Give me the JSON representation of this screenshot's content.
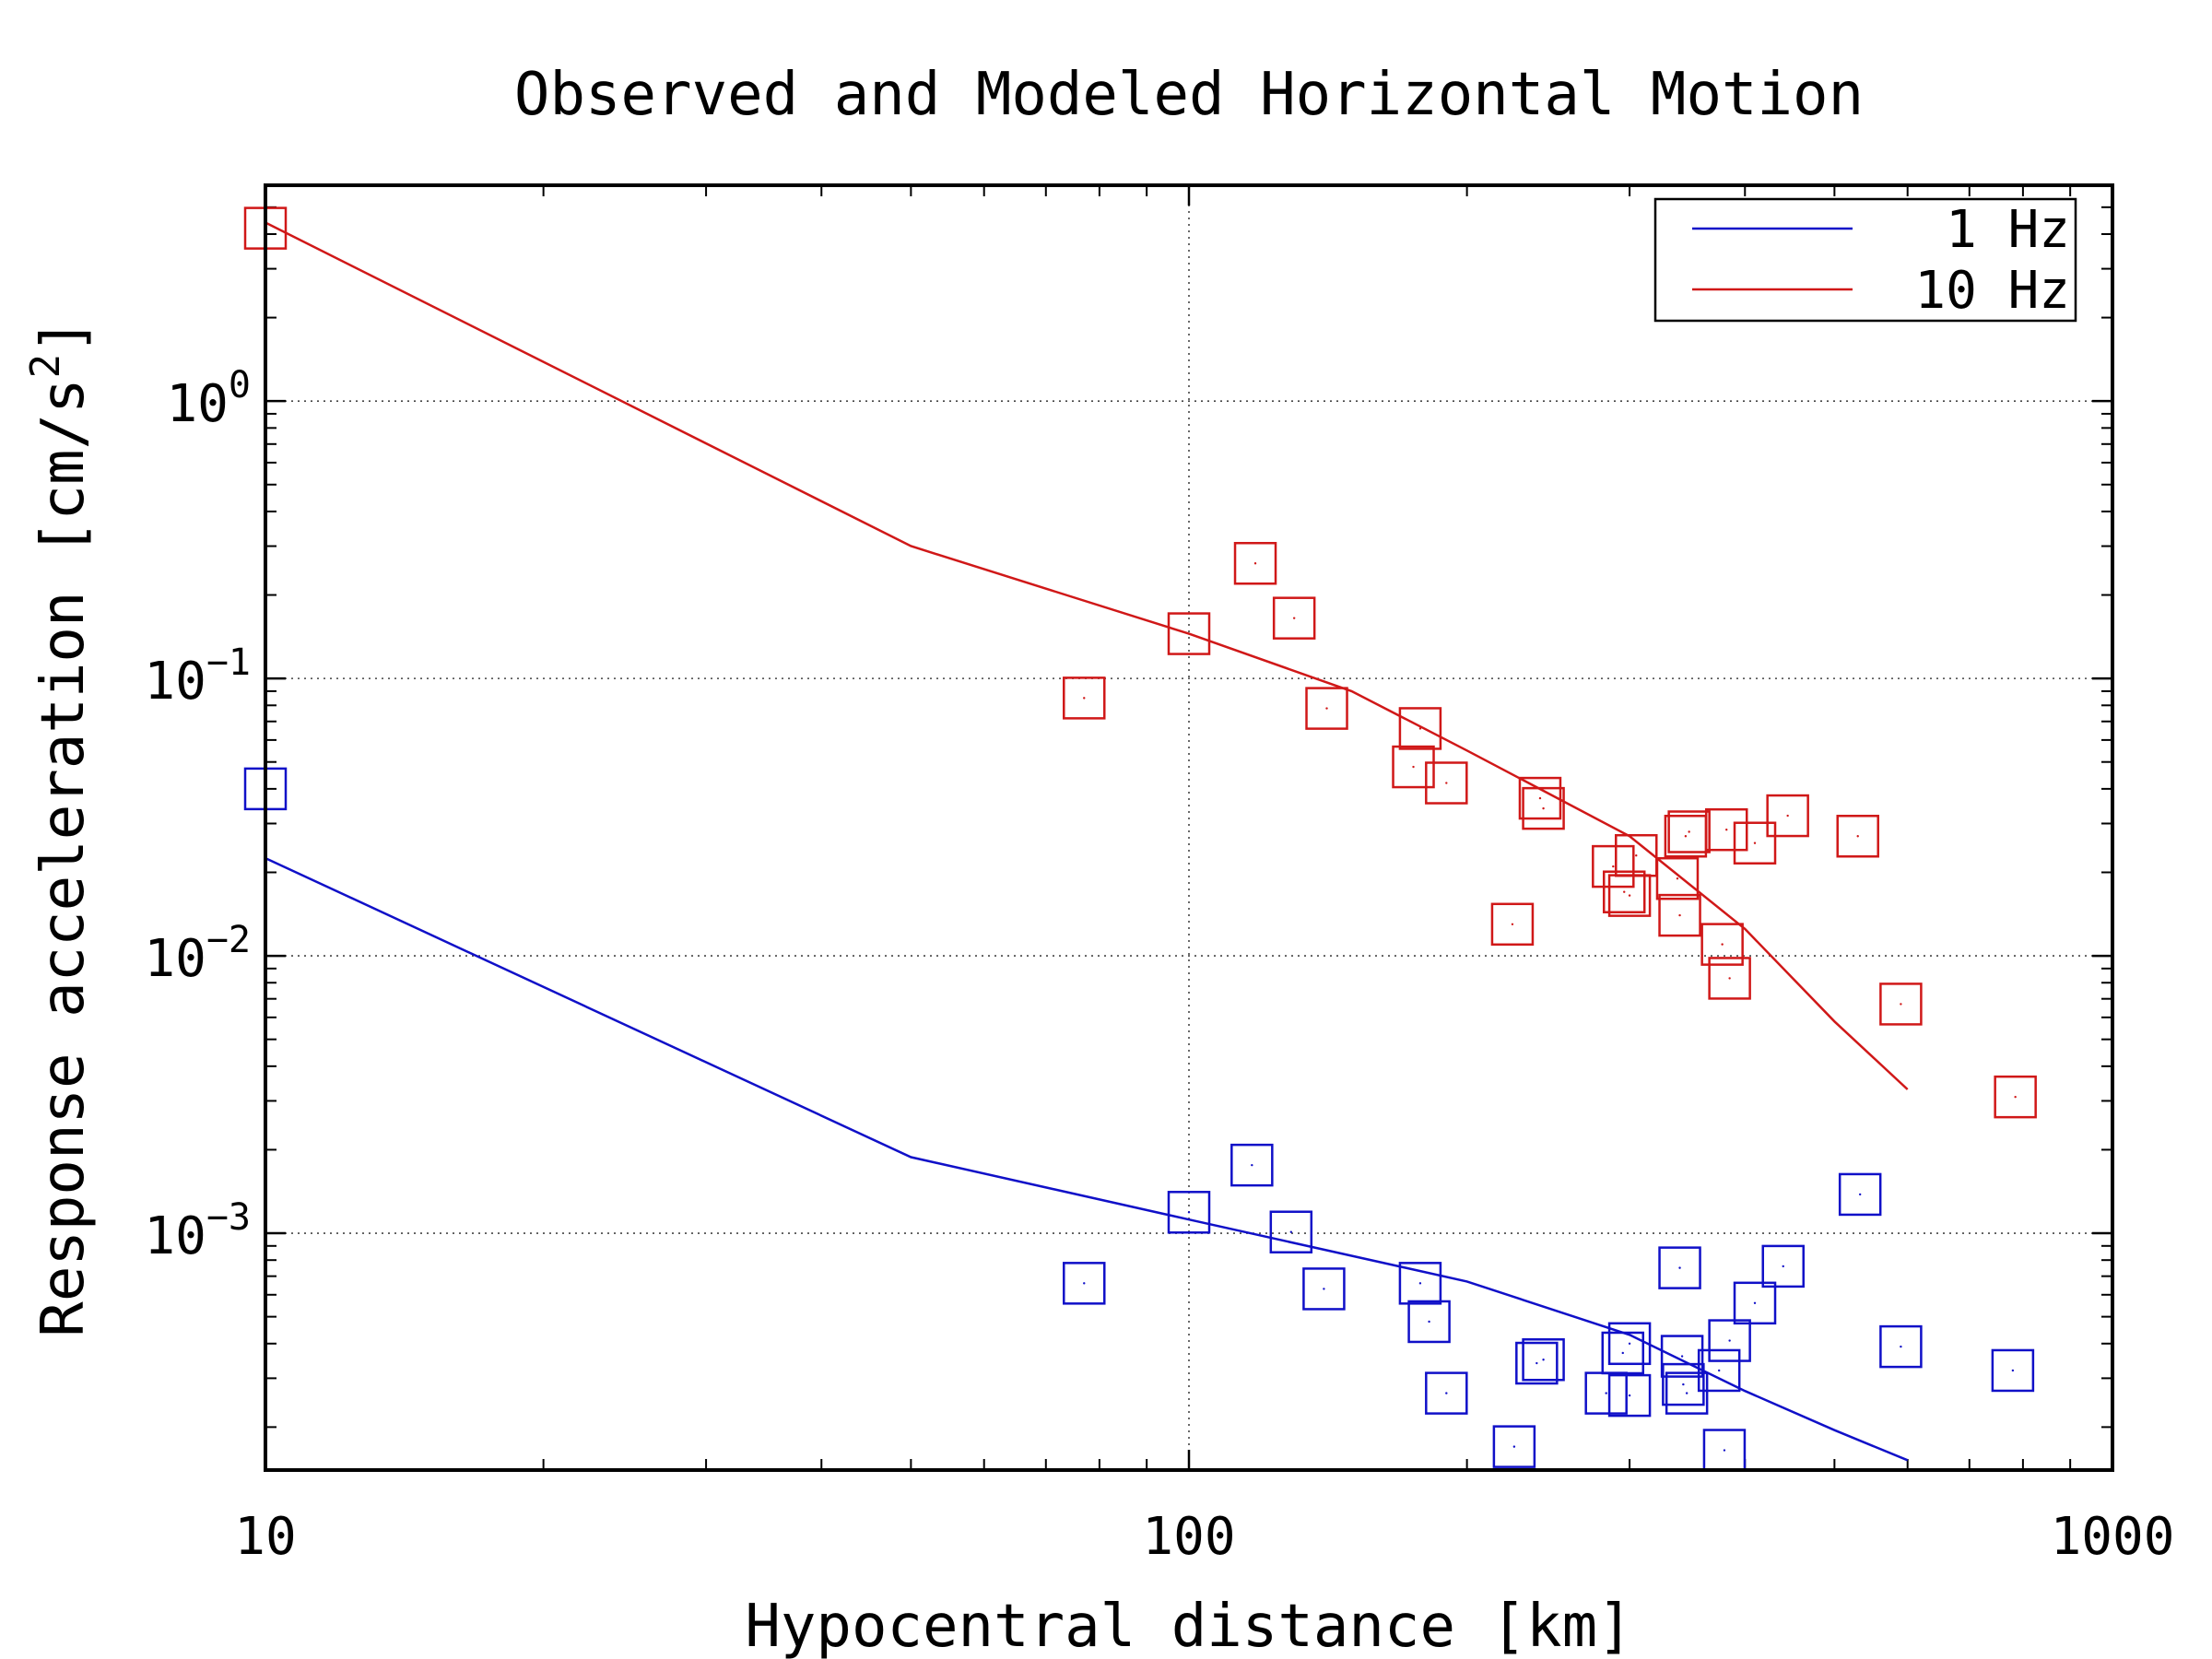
{
  "chart_data": {
    "type": "scatter",
    "title": "Observed and Modeled Horizontal Motion",
    "xlabel": "Hypocentral distance [km]",
    "ylabel": "Response acceleration [cm/s",
    "ylabel_superscript": "2",
    "ylabel_suffix": "]",
    "x_scale": "log",
    "y_scale": "log",
    "xlim": [
      10,
      1000
    ],
    "ylim": [
      0.00014,
      6.0
    ],
    "x_ticks": [
      {
        "value": 10,
        "label": "10"
      },
      {
        "value": 100,
        "label": "100"
      },
      {
        "value": 1000,
        "label": "1000"
      }
    ],
    "y_ticks": [
      {
        "value": 1,
        "base": "10",
        "exp": "0"
      },
      {
        "value": 0.1,
        "base": "10",
        "exp": "−1"
      },
      {
        "value": 0.01,
        "base": "10",
        "exp": "−2"
      },
      {
        "value": 0.001,
        "base": "10",
        "exp": "−3"
      }
    ],
    "grid": true,
    "legend_position": "top-right",
    "series": [
      {
        "name": "1 Hz",
        "color": "#1010c8",
        "model_line": [
          [
            10,
            0.0225
          ],
          [
            50,
            0.00188
          ],
          [
            100,
            0.00112
          ],
          [
            200,
            0.00067
          ],
          [
            300,
            0.00043
          ],
          [
            400,
            0.00027
          ],
          [
            500,
            0.000195
          ],
          [
            600,
            0.000152
          ]
        ],
        "observed": [
          [
            10,
            0.04
          ],
          [
            77,
            0.00066
          ],
          [
            100,
            0.00119
          ],
          [
            117,
            0.00176
          ],
          [
            129,
            0.00101
          ],
          [
            140,
            0.00063
          ],
          [
            178,
            0.00066
          ],
          [
            182,
            0.00048
          ],
          [
            190,
            0.000265
          ],
          [
            225,
            0.00017
          ],
          [
            238,
            0.00034
          ],
          [
            242,
            0.00035
          ],
          [
            283,
            0.000265
          ],
          [
            295,
            0.00037
          ],
          [
            300,
            0.0004
          ],
          [
            300,
            0.00026
          ],
          [
            340,
            0.00075
          ],
          [
            342,
            0.00036
          ],
          [
            343,
            0.000285
          ],
          [
            346,
            0.000265
          ],
          [
            375,
            0.00032
          ],
          [
            380,
            0.000165
          ],
          [
            385,
            0.00041
          ],
          [
            410,
            0.00056
          ],
          [
            440,
            0.00076
          ],
          [
            533,
            0.00138
          ],
          [
            590,
            0.00039
          ],
          [
            780,
            0.00032
          ]
        ]
      },
      {
        "name": "10 Hz",
        "color": "#d01818",
        "model_line": [
          [
            10,
            4.4
          ],
          [
            50,
            0.3
          ],
          [
            100,
            0.145
          ],
          [
            150,
            0.09
          ],
          [
            200,
            0.055
          ],
          [
            300,
            0.027
          ],
          [
            400,
            0.0125
          ],
          [
            500,
            0.0058
          ],
          [
            600,
            0.0033
          ]
        ],
        "observed": [
          [
            10,
            4.2
          ],
          [
            77,
            0.085
          ],
          [
            100,
            0.145
          ],
          [
            118,
            0.26
          ],
          [
            130,
            0.165
          ],
          [
            141,
            0.078
          ],
          [
            175,
            0.048
          ],
          [
            178,
            0.066
          ],
          [
            190,
            0.042
          ],
          [
            224,
            0.013
          ],
          [
            240,
            0.037
          ],
          [
            242,
            0.034
          ],
          [
            288,
            0.021
          ],
          [
            296,
            0.017
          ],
          [
            300,
            0.0165
          ],
          [
            305,
            0.023
          ],
          [
            338,
            0.019
          ],
          [
            340,
            0.014
          ],
          [
            345,
            0.027
          ],
          [
            348,
            0.028
          ],
          [
            378,
            0.011
          ],
          [
            382,
            0.0285
          ],
          [
            385,
            0.0083
          ],
          [
            410,
            0.0255
          ],
          [
            445,
            0.032
          ],
          [
            530,
            0.027
          ],
          [
            590,
            0.0067
          ],
          [
            785,
            0.0031
          ]
        ]
      }
    ]
  }
}
